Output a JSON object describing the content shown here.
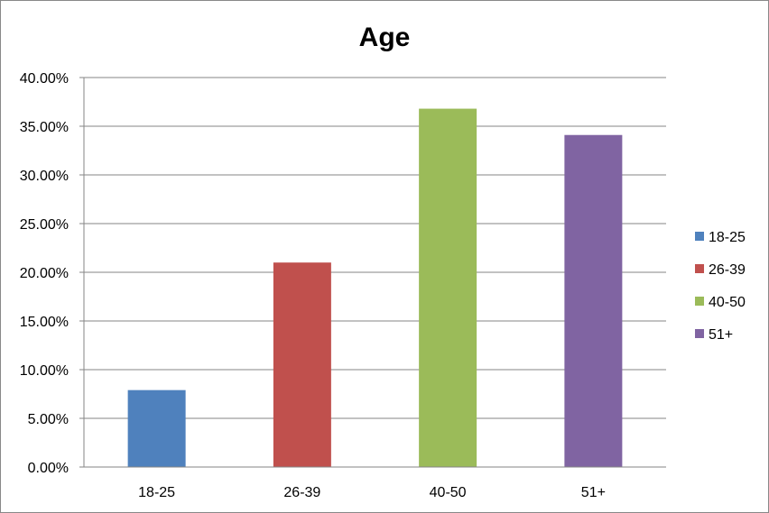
{
  "chart_data": {
    "type": "bar",
    "title": "Age",
    "xlabel": "",
    "ylabel": "",
    "categories": [
      "18-25",
      "26-39",
      "40-50",
      "51+"
    ],
    "values": [
      0.079,
      0.21,
      0.368,
      0.341
    ],
    "colors": [
      "#4F81BD",
      "#C0504D",
      "#9BBB59",
      "#8064A2"
    ],
    "ylim": [
      0,
      0.4
    ],
    "yticks": [
      0,
      0.05,
      0.1,
      0.15,
      0.2,
      0.25,
      0.3,
      0.35,
      0.4
    ],
    "ytick_labels": [
      "0.00%",
      "5.00%",
      "10.00%",
      "15.00%",
      "20.00%",
      "25.00%",
      "30.00%",
      "35.00%",
      "40.00%"
    ],
    "grid": true,
    "legend": {
      "placement": "right",
      "entries": [
        "18-25",
        "26-39",
        "40-50",
        "51+"
      ]
    }
  }
}
